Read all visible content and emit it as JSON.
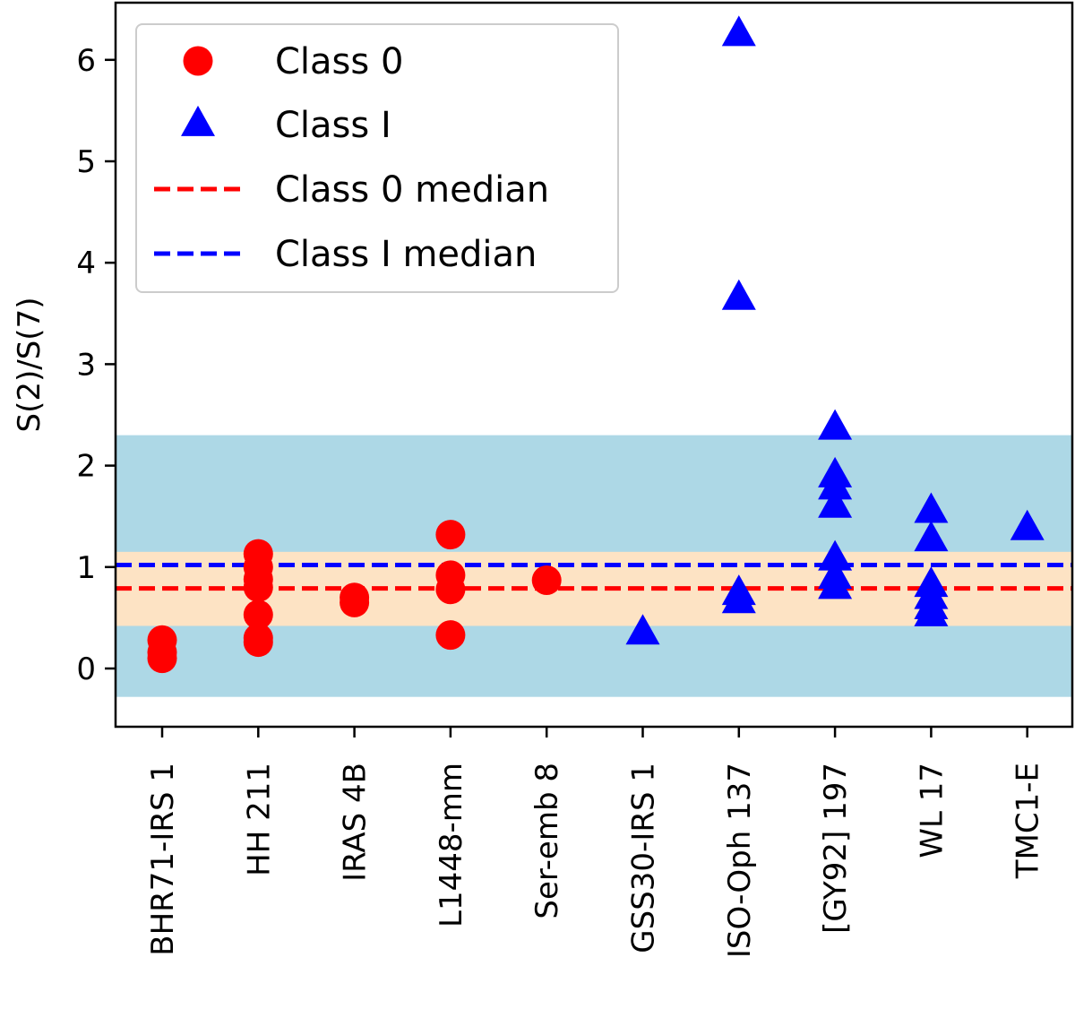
{
  "chart_data": {
    "type": "scatter",
    "title": "",
    "xlabel": "",
    "ylabel": "S(2)/S(7)",
    "ylim": [
      -0.55,
      6.55
    ],
    "yticks": [
      0,
      1,
      2,
      3,
      4,
      5,
      6
    ],
    "categories": [
      "BHR71-IRS 1",
      "HH 211",
      "IRAS 4B",
      "L1448-mm",
      "Ser-emb 8",
      "GSS30-IRS 1",
      "ISO-Oph 137",
      "[GY92] 197",
      "WL 17",
      "TMC1-E"
    ],
    "bands": [
      {
        "name": "outer range",
        "ymin": -0.28,
        "ymax": 2.3,
        "color": "#add8e6"
      },
      {
        "name": "inner range",
        "ymin": 0.42,
        "ymax": 1.15,
        "color": "#fde3c4"
      }
    ],
    "series": [
      {
        "name": "Class 0",
        "marker": "circle",
        "color": "#ff0000",
        "points": [
          {
            "x": "BHR71-IRS 1",
            "y": 0.1
          },
          {
            "x": "BHR71-IRS 1",
            "y": 0.16
          },
          {
            "x": "BHR71-IRS 1",
            "y": 0.28
          },
          {
            "x": "HH 211",
            "y": 0.26
          },
          {
            "x": "HH 211",
            "y": 0.3
          },
          {
            "x": "HH 211",
            "y": 0.53
          },
          {
            "x": "HH 211",
            "y": 0.8
          },
          {
            "x": "HH 211",
            "y": 0.88
          },
          {
            "x": "HH 211",
            "y": 1.0
          },
          {
            "x": "HH 211",
            "y": 1.13
          },
          {
            "x": "IRAS 4B",
            "y": 0.65
          },
          {
            "x": "IRAS 4B",
            "y": 0.7
          },
          {
            "x": "L1448-mm",
            "y": 0.33
          },
          {
            "x": "L1448-mm",
            "y": 0.78
          },
          {
            "x": "L1448-mm",
            "y": 0.92
          },
          {
            "x": "L1448-mm",
            "y": 1.32
          },
          {
            "x": "Ser-emb 8",
            "y": 0.87
          }
        ]
      },
      {
        "name": "Class I",
        "marker": "triangle",
        "color": "#0000ff",
        "points": [
          {
            "x": "GSS30-IRS 1",
            "y": 0.35
          },
          {
            "x": "ISO-Oph 137",
            "y": 0.66
          },
          {
            "x": "ISO-Oph 137",
            "y": 0.74
          },
          {
            "x": "ISO-Oph 137",
            "y": 3.65
          },
          {
            "x": "ISO-Oph 137",
            "y": 6.25
          },
          {
            "x": "[GY92] 197",
            "y": 0.8
          },
          {
            "x": "[GY92] 197",
            "y": 0.9
          },
          {
            "x": "[GY92] 197",
            "y": 1.08
          },
          {
            "x": "[GY92] 197",
            "y": 1.6
          },
          {
            "x": "[GY92] 197",
            "y": 1.78
          },
          {
            "x": "[GY92] 197",
            "y": 1.9
          },
          {
            "x": "[GY92] 197",
            "y": 2.37
          },
          {
            "x": "WL 17",
            "y": 0.53
          },
          {
            "x": "WL 17",
            "y": 0.6
          },
          {
            "x": "WL 17",
            "y": 0.7
          },
          {
            "x": "WL 17",
            "y": 0.82
          },
          {
            "x": "WL 17",
            "y": 1.27
          },
          {
            "x": "WL 17",
            "y": 1.55
          },
          {
            "x": "TMC1-E",
            "y": 1.38
          }
        ]
      }
    ],
    "medians": [
      {
        "name": "Class 0 median",
        "y": 0.79,
        "color": "#ff0000",
        "style": "dashed"
      },
      {
        "name": "Class I median",
        "y": 1.02,
        "color": "#0000ff",
        "style": "dashed"
      }
    ],
    "legend": {
      "position": "top-left",
      "entries": [
        "Class 0",
        "Class I",
        "Class 0 median",
        "Class I median"
      ]
    }
  }
}
